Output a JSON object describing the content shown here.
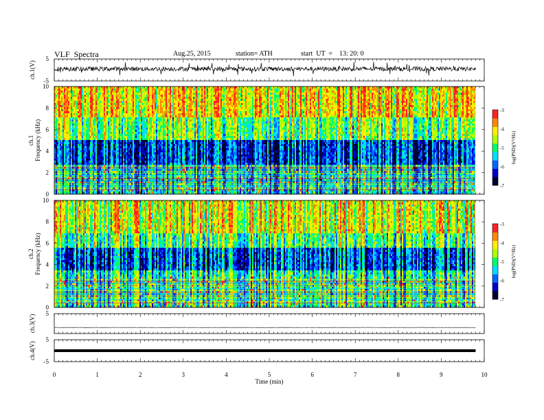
{
  "header": {
    "title": "VLF  Spectra",
    "date": "Aug.25, 2015",
    "station": "station= ATH",
    "start": "start  UT  =    13: 20: 0"
  },
  "chart_data": [
    {
      "type": "line",
      "panel": "ch1-waveform",
      "ylabel": "ch.1(V)",
      "ylim": [
        -5,
        5
      ],
      "yticks": [
        "5",
        "-5"
      ],
      "description_values": {
        "mean_level_V": 0.5,
        "noise_amplitude_V": 1.0
      }
    },
    {
      "type": "heatmap",
      "panel": "ch1-spectrogram",
      "ylabel_lines": [
        "ch.1",
        "Frequency  (kHz)"
      ],
      "ylim": [
        0,
        10
      ],
      "yticks": [
        "0",
        "2",
        "4",
        "6",
        "8",
        "10"
      ],
      "colorbar": {
        "label": "log(PSD)(V²/Hz)",
        "range": [
          -7,
          -3
        ],
        "ticks": [
          "-3",
          "-4",
          "-5",
          "-6",
          "-7"
        ]
      }
    },
    {
      "type": "heatmap",
      "panel": "ch2-spectrogram",
      "ylabel_lines": [
        "ch.2",
        "Frequency  (kHz)"
      ],
      "ylim": [
        0,
        10
      ],
      "yticks": [
        "0",
        "2",
        "4",
        "6",
        "8",
        "10"
      ],
      "colorbar": {
        "label": "log(PSD)(V²/Hz)",
        "range": [
          -7,
          -3
        ],
        "ticks": [
          "-3",
          "-4",
          "-5",
          "-6",
          "-7"
        ]
      }
    },
    {
      "type": "line",
      "panel": "ch3-waveform",
      "ylabel": "ch.3(V)",
      "ylim": [
        -5,
        5
      ],
      "yticks": [
        "5"
      ],
      "description_values": {
        "mean_level_V": -2.0
      }
    },
    {
      "type": "line",
      "panel": "ch4-waveform",
      "ylabel": "ch.4(V)",
      "ylim": [
        -5,
        5
      ],
      "yticks": [
        "5",
        "-5"
      ],
      "description_values": {
        "mean_level_V": 0.0
      }
    }
  ],
  "xaxis": {
    "label": "Time  (min)",
    "xlim": [
      0,
      10
    ],
    "ticks": [
      "0",
      "1",
      "2",
      "3",
      "4",
      "5",
      "6",
      "7",
      "8",
      "9",
      "10"
    ],
    "data_end_min": 9.8
  },
  "colors": {
    "scale": [
      "#000033",
      "#0000cc",
      "#0066ff",
      "#00ddff",
      "#00ff66",
      "#aaff00",
      "#ffee00",
      "#ff8800",
      "#ff2222"
    ]
  }
}
